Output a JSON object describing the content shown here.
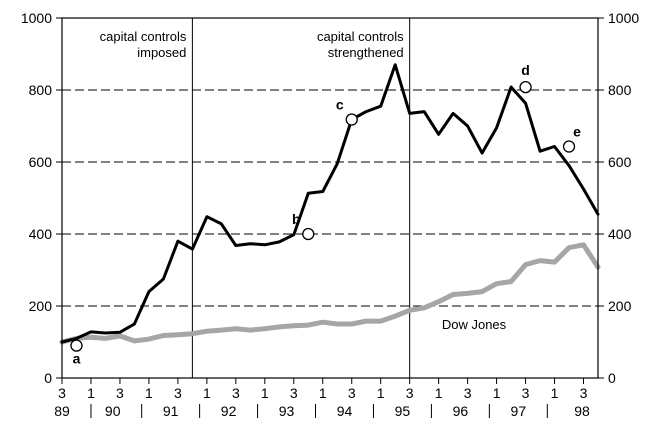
{
  "chart_data": {
    "type": "line",
    "x_quarters": [
      "89Q3",
      "89Q4",
      "90Q1",
      "90Q2",
      "90Q3",
      "90Q4",
      "91Q1",
      "91Q2",
      "91Q3",
      "91Q4",
      "92Q1",
      "92Q2",
      "92Q3",
      "92Q4",
      "93Q1",
      "93Q2",
      "93Q3",
      "93Q4",
      "94Q1",
      "94Q2",
      "94Q3",
      "94Q4",
      "95Q1",
      "95Q2",
      "95Q3",
      "95Q4",
      "96Q1",
      "96Q2",
      "96Q3",
      "96Q4",
      "97Q1",
      "97Q2",
      "97Q3",
      "97Q4",
      "98Q1",
      "98Q2",
      "98Q3",
      "98Q4"
    ],
    "series": [
      {
        "name": "",
        "color": "#000000",
        "values": [
          100,
          110,
          128,
          125,
          127,
          150,
          240,
          275,
          380,
          358,
          448,
          428,
          368,
          373,
          370,
          378,
          398,
          513,
          518,
          595,
          718,
          740,
          755,
          870,
          735,
          740,
          677,
          735,
          700,
          625,
          695,
          808,
          763,
          630,
          643,
          590,
          525,
          455
        ]
      },
      {
        "name": "Dow Jones",
        "color": "#a6a6a6",
        "values": [
          100,
          110,
          113,
          110,
          117,
          103,
          108,
          118,
          120,
          123,
          130,
          133,
          137,
          133,
          137,
          142,
          145,
          147,
          155,
          150,
          150,
          158,
          158,
          172,
          188,
          195,
          212,
          232,
          235,
          240,
          262,
          268,
          315,
          326,
          322,
          362,
          370,
          308
        ]
      }
    ],
    "marked_points": [
      {
        "label": "a",
        "x": "89Q4",
        "y": 90
      },
      {
        "label": "b",
        "x": "93Q4",
        "y": 400
      },
      {
        "label": "c",
        "x": "94Q3",
        "y": 718
      },
      {
        "label": "d",
        "x": "97Q3",
        "y": 808
      },
      {
        "label": "e",
        "x": "98Q2",
        "y": 643
      }
    ],
    "events": [
      {
        "x": "91Q4",
        "lines": [
          "capital controls",
          "imposed"
        ]
      },
      {
        "x": "95Q3",
        "lines": [
          "capital controls",
          "strengthened"
        ]
      }
    ],
    "ylim": [
      0,
      1000
    ],
    "yticks": [
      0,
      200,
      400,
      600,
      800,
      1000
    ],
    "x_quarter_ticks": [
      "3",
      "1",
      "3",
      "1",
      "3",
      "1",
      "3",
      "1",
      "3",
      "1",
      "3",
      "1",
      "3",
      "1",
      "3",
      "1",
      "3",
      "1",
      "3"
    ],
    "year_labels": [
      "89",
      "90",
      "91",
      "92",
      "93",
      "94",
      "95",
      "96",
      "97",
      "98"
    ],
    "grid": "dashed horizontal",
    "xlabel": "",
    "ylabel": ""
  }
}
